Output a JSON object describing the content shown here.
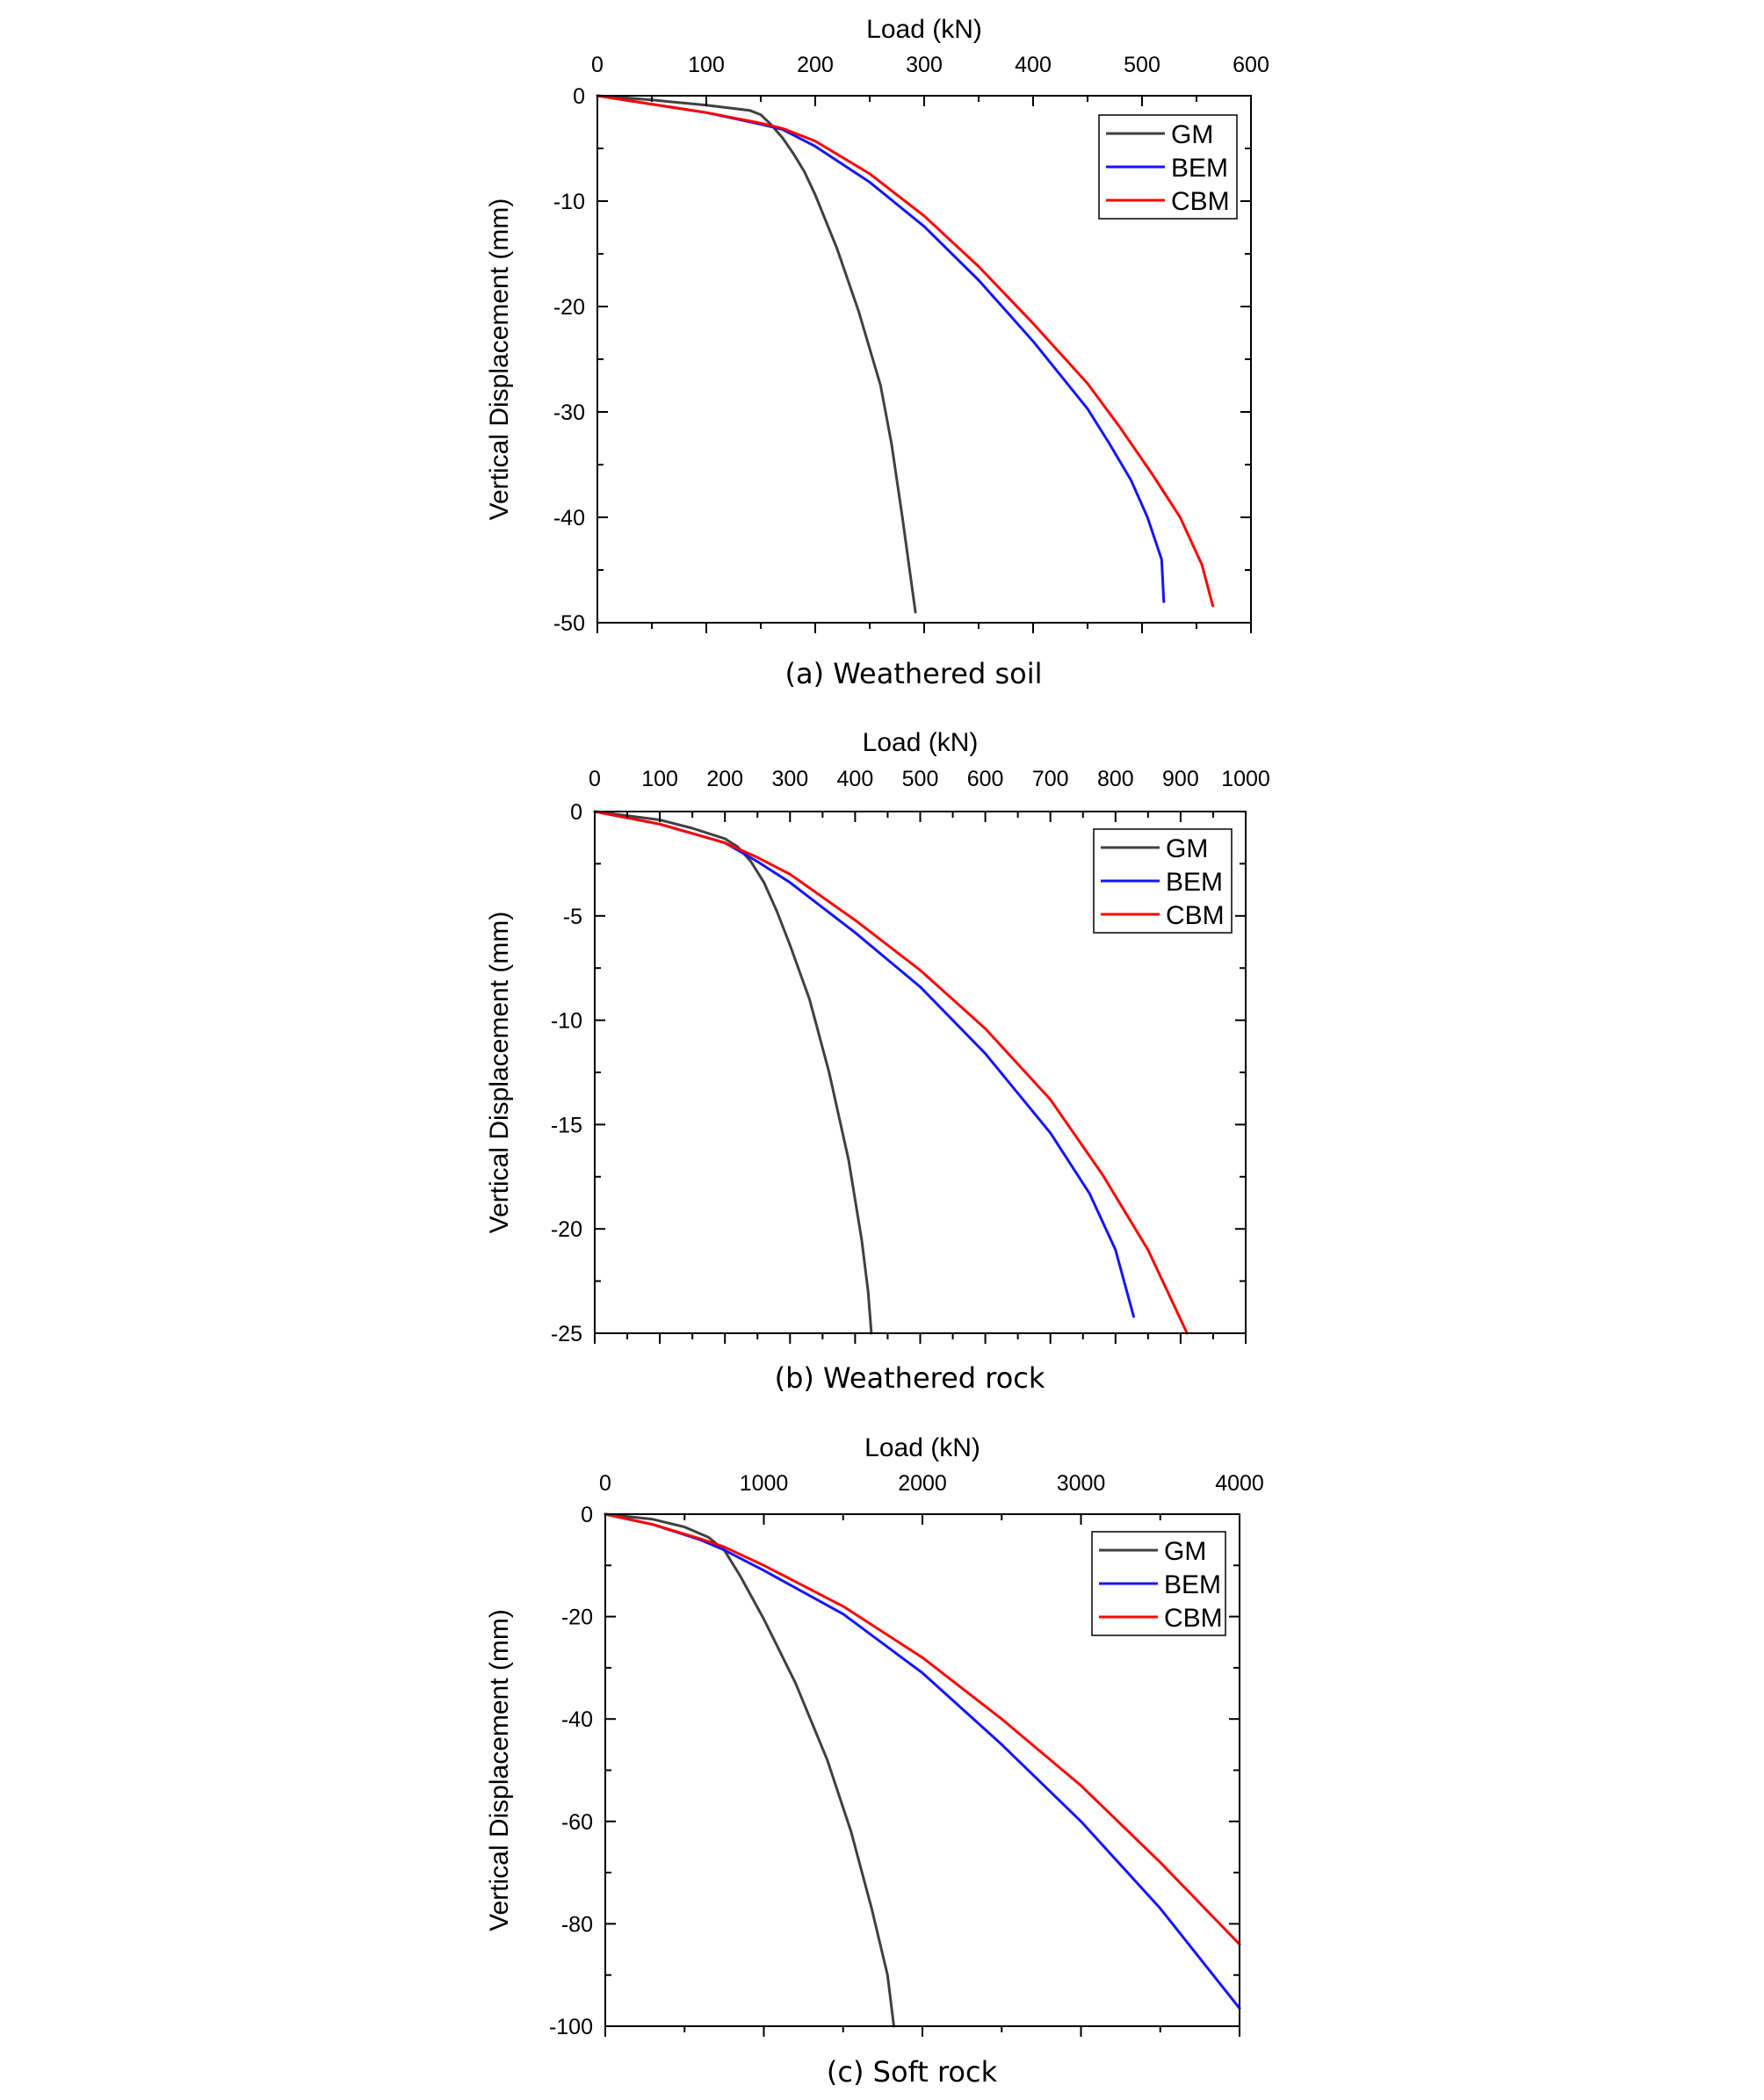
{
  "chart_data": [
    {
      "type": "line",
      "caption": "(a) Weathered soil",
      "xlabel": "Load (kN)",
      "ylabel": "Vertical Displacement (mm)",
      "xlim": [
        0,
        600
      ],
      "ylim": [
        -50,
        0
      ],
      "xticks": [
        0,
        100,
        200,
        300,
        400,
        500,
        600
      ],
      "yticks": [
        0,
        -10,
        -20,
        -30,
        -40,
        -50
      ],
      "x_axis_position": "top",
      "grid": false,
      "legend_position": "top-right",
      "series": [
        {
          "name": "GM",
          "color": "#404040",
          "points": [
            [
              0,
              0
            ],
            [
              50,
              -0.4
            ],
            [
              100,
              -0.9
            ],
            [
              140,
              -1.4
            ],
            [
              150,
              -1.8
            ],
            [
              160,
              -2.8
            ],
            [
              170,
              -4.0
            ],
            [
              180,
              -5.5
            ],
            [
              190,
              -7.2
            ],
            [
              200,
              -9.4
            ],
            [
              220,
              -14.5
            ],
            [
              240,
              -20.5
            ],
            [
              260,
              -27.5
            ],
            [
              275,
              -34
            ],
            [
              285,
              -40
            ],
            [
              292,
              -46
            ],
            [
              295,
              -49
            ]
          ]
        },
        {
          "name": "BEM",
          "color": "#1414ff",
          "points": [
            [
              0,
              0
            ],
            [
              50,
              -0.8
            ],
            [
              100,
              -1.6
            ],
            [
              150,
              -2.7
            ],
            [
              170,
              -3.2
            ],
            [
              200,
              -4.8
            ],
            [
              250,
              -8.2
            ],
            [
              300,
              -12.4
            ],
            [
              350,
              -17.5
            ],
            [
              400,
              -23.3
            ],
            [
              450,
              -29.7
            ],
            [
              500,
              -37.0
            ],
            [
              520,
              -40.3
            ],
            [
              540,
              -43.5
            ],
            [
              555,
              -46.3
            ],
            [
              565,
              -48.4
            ]
          ]
        },
        {
          "name": "CBM",
          "color": "#ff0000",
          "points": [
            [
              0,
              0
            ],
            [
              50,
              -0.8
            ],
            [
              100,
              -1.6
            ],
            [
              150,
              -2.6
            ],
            [
              170,
              -3.1
            ],
            [
              200,
              -4.3
            ],
            [
              250,
              -7.4
            ],
            [
              300,
              -11.4
            ],
            [
              350,
              -16.2
            ],
            [
              400,
              -21.6
            ],
            [
              450,
              -27.3
            ],
            [
              500,
              -33.8
            ],
            [
              520,
              -36.5
            ],
            [
              540,
              -39.5
            ],
            [
              560,
              -42.7
            ],
            [
              580,
              -46.2
            ],
            [
              565,
              -44.4
            ],
            [
              565,
              -44.4
            ]
          ]
        }
      ]
    },
    {
      "type": "line",
      "caption": "(b) Weathered rock",
      "xlabel": "Load (kN)",
      "ylabel": "Vertical Displacement (mm)",
      "xlim": [
        0,
        1000
      ],
      "ylim": [
        -25,
        0
      ],
      "xticks": [
        0,
        100,
        200,
        300,
        400,
        500,
        600,
        700,
        800,
        900,
        1000
      ],
      "yticks": [
        0,
        -5,
        -10,
        -15,
        -20,
        -25
      ],
      "x_axis_position": "top",
      "grid": false,
      "legend_position": "top-right",
      "series": [
        {
          "name": "GM",
          "color": "#404040",
          "points": [
            [
              0,
              0
            ],
            [
              100,
              -0.4
            ],
            [
              150,
              -0.8
            ],
            [
              200,
              -1.3
            ],
            [
              220,
              -1.7
            ],
            [
              240,
              -2.4
            ],
            [
              260,
              -3.4
            ],
            [
              280,
              -4.8
            ],
            [
              300,
              -6.4
            ],
            [
              330,
              -9.0
            ],
            [
              360,
              -12.5
            ],
            [
              390,
              -16.7
            ],
            [
              410,
              -20.5
            ],
            [
              420,
              -23.0
            ],
            [
              425,
              -25
            ]
          ]
        },
        {
          "name": "BEM",
          "color": "#1414ff",
          "points": [
            [
              0,
              0
            ],
            [
              100,
              -0.6
            ],
            [
              200,
              -1.5
            ],
            [
              250,
              -2.4
            ],
            [
              300,
              -3.4
            ],
            [
              400,
              -5.8
            ],
            [
              500,
              -8.4
            ],
            [
              600,
              -11.6
            ],
            [
              700,
              -15.4
            ],
            [
              780,
              -19.2
            ],
            [
              840,
              -22.6
            ],
            [
              875,
              -24.6
            ],
            [
              828,
              -24.2
            ]
          ]
        },
        {
          "name": "CBM",
          "color": "#ff0000",
          "points": [
            [
              0,
              0
            ],
            [
              100,
              -0.6
            ],
            [
              200,
              -1.5
            ],
            [
              250,
              -2.2
            ],
            [
              300,
              -3.0
            ],
            [
              400,
              -5.2
            ],
            [
              500,
              -7.6
            ],
            [
              600,
              -10.4
            ],
            [
              700,
              -13.8
            ],
            [
              780,
              -17.0
            ],
            [
              840,
              -19.8
            ],
            [
              880,
              -21.9
            ],
            [
              910,
              -25
            ]
          ]
        }
      ]
    },
    {
      "type": "line",
      "caption": "(c) Soft rock",
      "xlabel": "Load (kN)",
      "ylabel": "Vertical Displacement (mm)",
      "xlim": [
        0,
        4000
      ],
      "ylim": [
        -100,
        0
      ],
      "xticks": [
        0,
        1000,
        2000,
        3000,
        4000
      ],
      "yticks": [
        0,
        -20,
        -40,
        -60,
        -80,
        -100
      ],
      "x_axis_position": "top",
      "grid": false,
      "legend_position": "top-right",
      "series": [
        {
          "name": "GM",
          "color": "#404040",
          "points": [
            [
              0,
              0
            ],
            [
              300,
              -1.0
            ],
            [
              500,
              -2.5
            ],
            [
              650,
              -4.5
            ],
            [
              750,
              -7.0
            ],
            [
              850,
              -12.0
            ],
            [
              1000,
              -20.5
            ],
            [
              1200,
              -33.0
            ],
            [
              1400,
              -48.0
            ],
            [
              1550,
              -62.0
            ],
            [
              1680,
              -77.0
            ],
            [
              1780,
              -90.0
            ],
            [
              1820,
              -100
            ]
          ]
        },
        {
          "name": "BEM",
          "color": "#1414ff",
          "points": [
            [
              0,
              0
            ],
            [
              300,
              -2.0
            ],
            [
              600,
              -5.0
            ],
            [
              750,
              -7.0
            ],
            [
              1000,
              -11.0
            ],
            [
              1500,
              -19.5
            ],
            [
              2000,
              -31.0
            ],
            [
              2500,
              -45.0
            ],
            [
              3000,
              -60.0
            ],
            [
              3500,
              -77.0
            ],
            [
              4000,
              -96.5
            ]
          ]
        },
        {
          "name": "CBM",
          "color": "#ff0000",
          "points": [
            [
              0,
              0
            ],
            [
              300,
              -2.0
            ],
            [
              600,
              -4.8
            ],
            [
              750,
              -6.4
            ],
            [
              1000,
              -10.0
            ],
            [
              1500,
              -18.0
            ],
            [
              2000,
              -28.0
            ],
            [
              2500,
              -40.0
            ],
            [
              3000,
              -53.0
            ],
            [
              3500,
              -68.0
            ],
            [
              4000,
              -84.0
            ]
          ]
        }
      ]
    }
  ]
}
